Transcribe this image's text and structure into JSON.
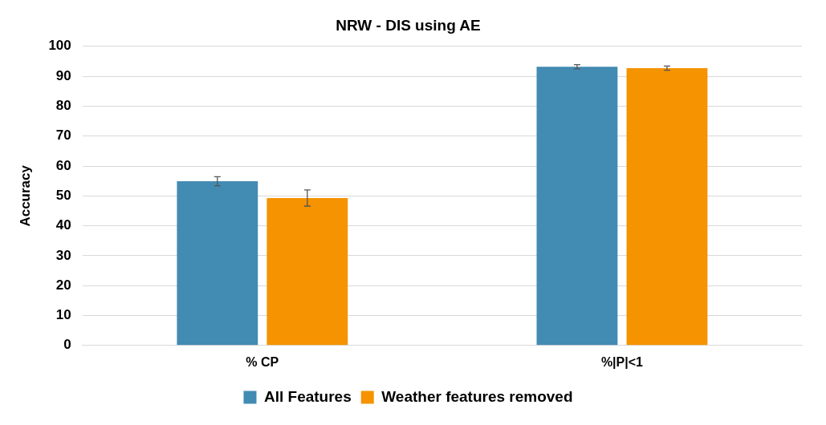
{
  "chart_data": {
    "type": "bar",
    "title": "NRW - DIS using AE",
    "ylabel": "Accuracy",
    "categories": [
      "% CP",
      "%|P|<1"
    ],
    "series": [
      {
        "name": "All Features",
        "color": "#428bb3",
        "values": [
          54.9,
          93.2
        ],
        "errors": [
          1.5,
          0.7
        ]
      },
      {
        "name": "Weather features removed",
        "color": "#f59300",
        "values": [
          49.3,
          92.7
        ],
        "errors": [
          2.7,
          0.7
        ]
      }
    ],
    "ylim": [
      0,
      100
    ],
    "yticks": [
      0,
      10,
      20,
      30,
      40,
      50,
      60,
      70,
      80,
      90,
      100
    ],
    "grid": "y",
    "legend": "bottom"
  }
}
